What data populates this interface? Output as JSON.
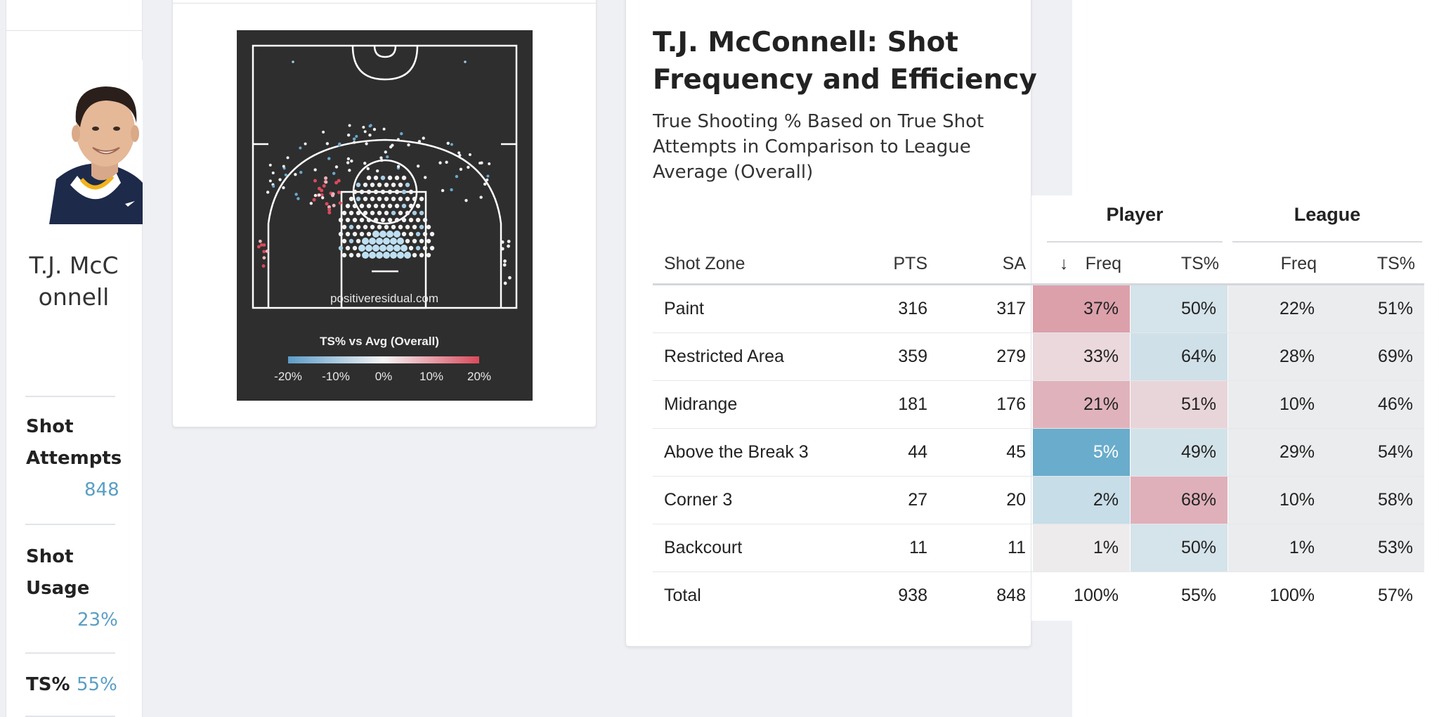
{
  "player": {
    "name": "T.J. McConnell",
    "stats": [
      {
        "label": "Shot Attempts",
        "value": "848"
      },
      {
        "label": "Shot Usage",
        "value": "23%"
      },
      {
        "label": "TS%",
        "value": "55%"
      }
    ]
  },
  "shot_chart": {
    "watermark": "positiveresidual.com",
    "legend_title": "TS% vs Avg (Overall)",
    "legend_ticks": [
      "-20%",
      "-10%",
      "0%",
      "10%",
      "20%"
    ],
    "colors": {
      "below_avg": "#6ba9ce",
      "above_avg": "#d94a5c",
      "neutral": "#f5f5f5",
      "court_bg": "#2e2e2e"
    }
  },
  "table": {
    "title": "T.J. McConnell: Shot Frequency and Efficiency",
    "subtitle": "True Shooting % Based on True Shot Attempts in Comparison to League Average (Overall)",
    "groups": {
      "player": "Player",
      "league": "League"
    },
    "columns": {
      "zone": "Shot Zone",
      "pts": "PTS",
      "sa": "SA",
      "freq": "Freq",
      "ts": "TS%",
      "lfreq": "Freq",
      "lts": "TS%",
      "sort_icon": "↓"
    },
    "rows": [
      {
        "zone": "Paint",
        "pts": "316",
        "sa": "317",
        "freq": "37%",
        "ts": "50%",
        "lfreq": "22%",
        "lts": "51%",
        "freq_color": "#dca0ab",
        "ts_color": "#d5e3ea"
      },
      {
        "zone": "Restricted Area",
        "pts": "359",
        "sa": "279",
        "freq": "33%",
        "ts": "64%",
        "lfreq": "28%",
        "lts": "69%",
        "freq_color": "#ead8dc",
        "ts_color": "#cfe0e8"
      },
      {
        "zone": "Midrange",
        "pts": "181",
        "sa": "176",
        "freq": "21%",
        "ts": "51%",
        "lfreq": "10%",
        "lts": "46%",
        "freq_color": "#e0b3bc",
        "ts_color": "#e8d5da"
      },
      {
        "zone": "Above the Break 3",
        "pts": "44",
        "sa": "45",
        "freq": "5%",
        "ts": "49%",
        "lfreq": "29%",
        "lts": "54%",
        "freq_color": "#6aaccb",
        "ts_color": "#d2e2e9"
      },
      {
        "zone": "Corner 3",
        "pts": "27",
        "sa": "20",
        "freq": "2%",
        "ts": "68%",
        "lfreq": "10%",
        "lts": "58%",
        "freq_color": "#c7dde8",
        "ts_color": "#dfb0ba"
      },
      {
        "zone": "Backcourt",
        "pts": "11",
        "sa": "11",
        "freq": "1%",
        "ts": "50%",
        "lfreq": "1%",
        "lts": "53%",
        "freq_color": "#eeebed",
        "ts_color": "#d5e3ea"
      }
    ],
    "total": {
      "zone": "Total",
      "pts": "938",
      "sa": "848",
      "freq": "100%",
      "ts": "55%",
      "lfreq": "100%",
      "lts": "57%"
    },
    "league_cell_color": "#ebecee"
  }
}
